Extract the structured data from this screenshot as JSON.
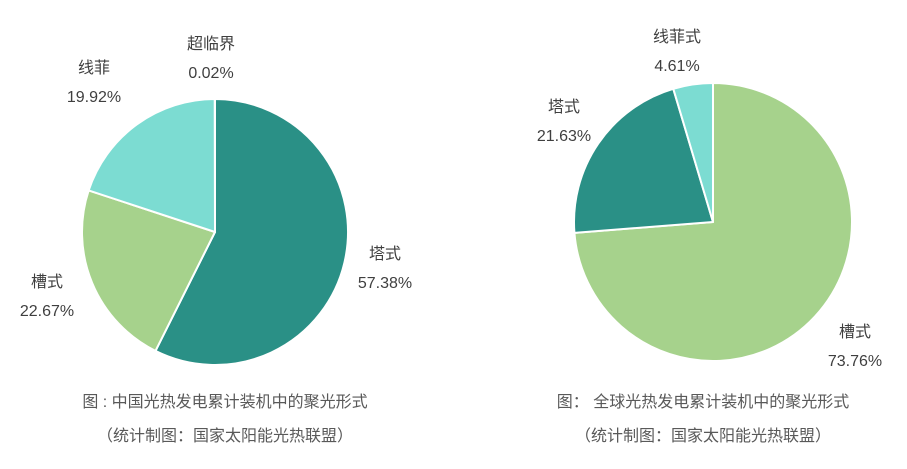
{
  "page": {
    "background": "#ffffff",
    "text_color": "#3f3f3f",
    "caption_color": "#595959"
  },
  "chart_data": [
    {
      "type": "pie",
      "title": "图 : 中国光热发电累计装机中的聚光形式",
      "source": "（统计制图：国家太阳能光热联盟）",
      "legend_position": "none",
      "labels_on_chart": true,
      "start_angle_deg": 0,
      "direction": "clockwise",
      "slices": [
        {
          "id": "tower",
          "label": "塔式",
          "value": 57.38,
          "pct_label": "57.38%",
          "color": "#2a9086"
        },
        {
          "id": "trough",
          "label": "槽式",
          "value": 22.67,
          "pct_label": "22.67%",
          "color": "#a6d28c"
        },
        {
          "id": "linear-fresnel",
          "label": "线菲",
          "value": 19.92,
          "pct_label": "19.92%",
          "color": "#7cdcd2"
        },
        {
          "id": "supercritical",
          "label": "超临界",
          "value": 0.02,
          "pct_label": "0.02%",
          "color": "#ffffff"
        }
      ]
    },
    {
      "type": "pie",
      "title": "图：  全球光热发电累计装机中的聚光形式",
      "source": "（统计制图：国家太阳能光热联盟）",
      "legend_position": "none",
      "labels_on_chart": true,
      "start_angle_deg": 0,
      "direction": "clockwise",
      "slices": [
        {
          "id": "trough",
          "label": "槽式",
          "value": 73.76,
          "pct_label": "73.76%",
          "color": "#a6d28c"
        },
        {
          "id": "tower",
          "label": "塔式",
          "value": 21.63,
          "pct_label": "21.63%",
          "color": "#2a9086"
        },
        {
          "id": "linear-fresnel",
          "label": "线菲式",
          "value": 4.61,
          "pct_label": "4.61%",
          "color": "#7cdcd2"
        }
      ]
    }
  ]
}
